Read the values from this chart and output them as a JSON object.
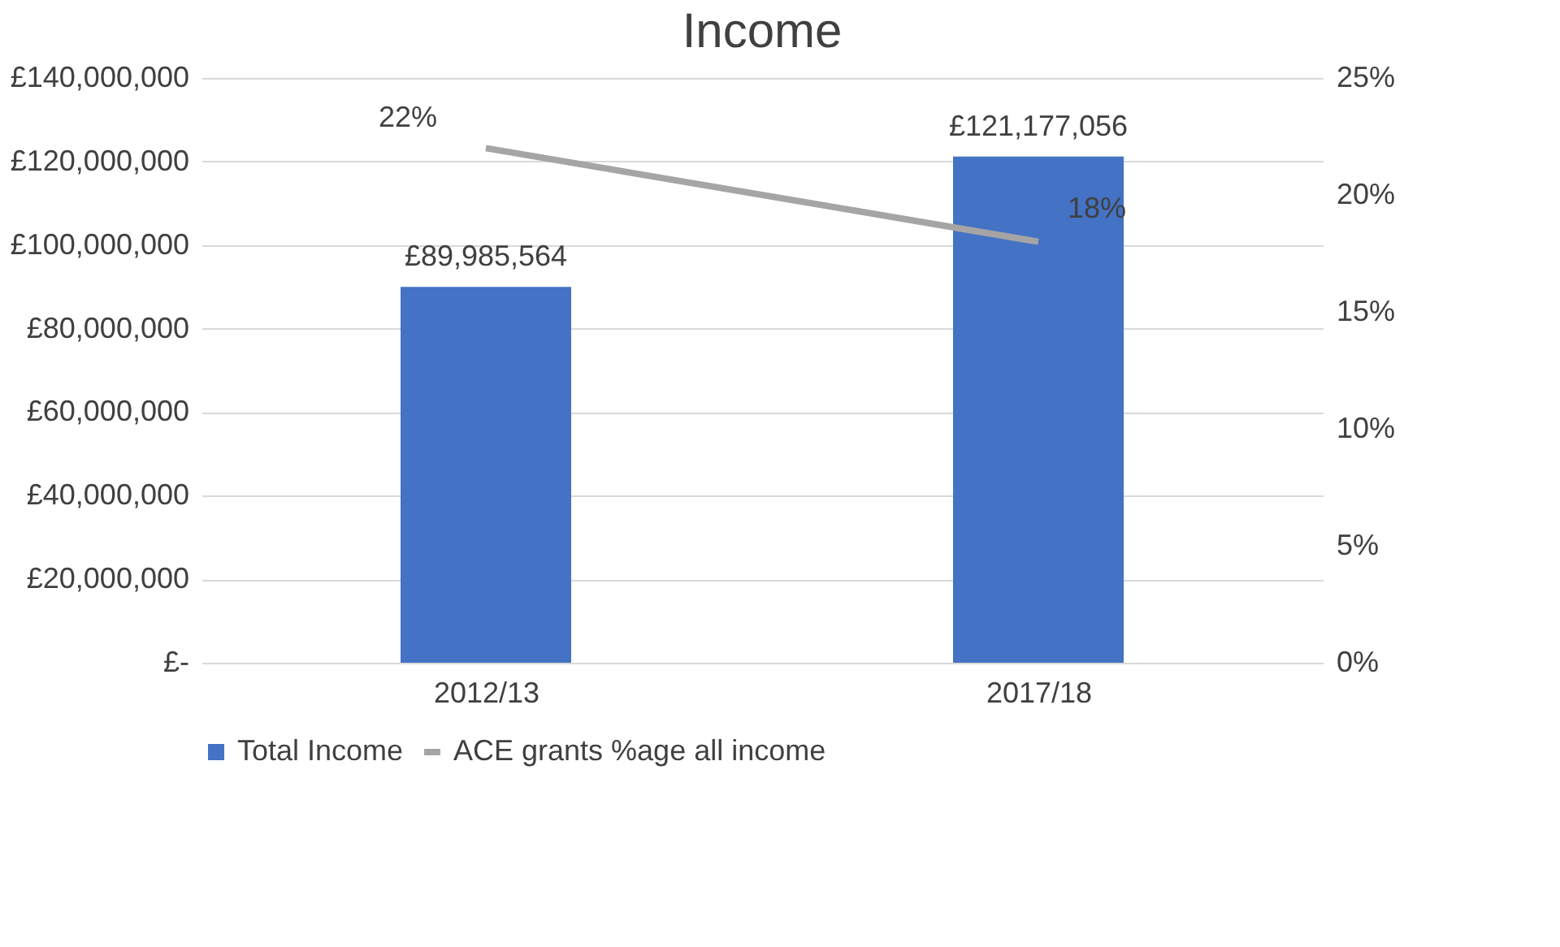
{
  "chart_data": {
    "type": "bar",
    "title": "Income",
    "categories": [
      "2012/13",
      "2017/18"
    ],
    "series": [
      {
        "name": "Total Income",
        "color": "#4472c4",
        "values": [
          89985564,
          121177056
        ],
        "value_labels": [
          "£89,985,564",
          "£121,177,056"
        ]
      },
      {
        "name": "ACE grants %age all income",
        "type": "line",
        "axis": "y2",
        "color": "#a5a5a5",
        "values": [
          22,
          18
        ],
        "value_labels": [
          "22%",
          "18%"
        ]
      }
    ],
    "ylim": [
      0,
      140000000
    ],
    "yticks": [
      {
        "value": 0,
        "label": "£-"
      },
      {
        "value": 20000000,
        "label": "£20,000,000"
      },
      {
        "value": 40000000,
        "label": "£40,000,000"
      },
      {
        "value": 60000000,
        "label": "£60,000,000"
      },
      {
        "value": 80000000,
        "label": "£80,000,000"
      },
      {
        "value": 100000000,
        "label": "£100,000,000"
      },
      {
        "value": 120000000,
        "label": "£120,000,000"
      },
      {
        "value": 140000000,
        "label": "£140,000,000"
      }
    ],
    "y2lim": [
      0,
      25
    ],
    "y2ticks": [
      {
        "value": 0,
        "label": "0%"
      },
      {
        "value": 5,
        "label": "5%"
      },
      {
        "value": 10,
        "label": "10%"
      },
      {
        "value": 15,
        "label": "15%"
      },
      {
        "value": 20,
        "label": "20%"
      },
      {
        "value": 25,
        "label": "25%"
      }
    ],
    "grid": "y",
    "legend": "bottom"
  }
}
